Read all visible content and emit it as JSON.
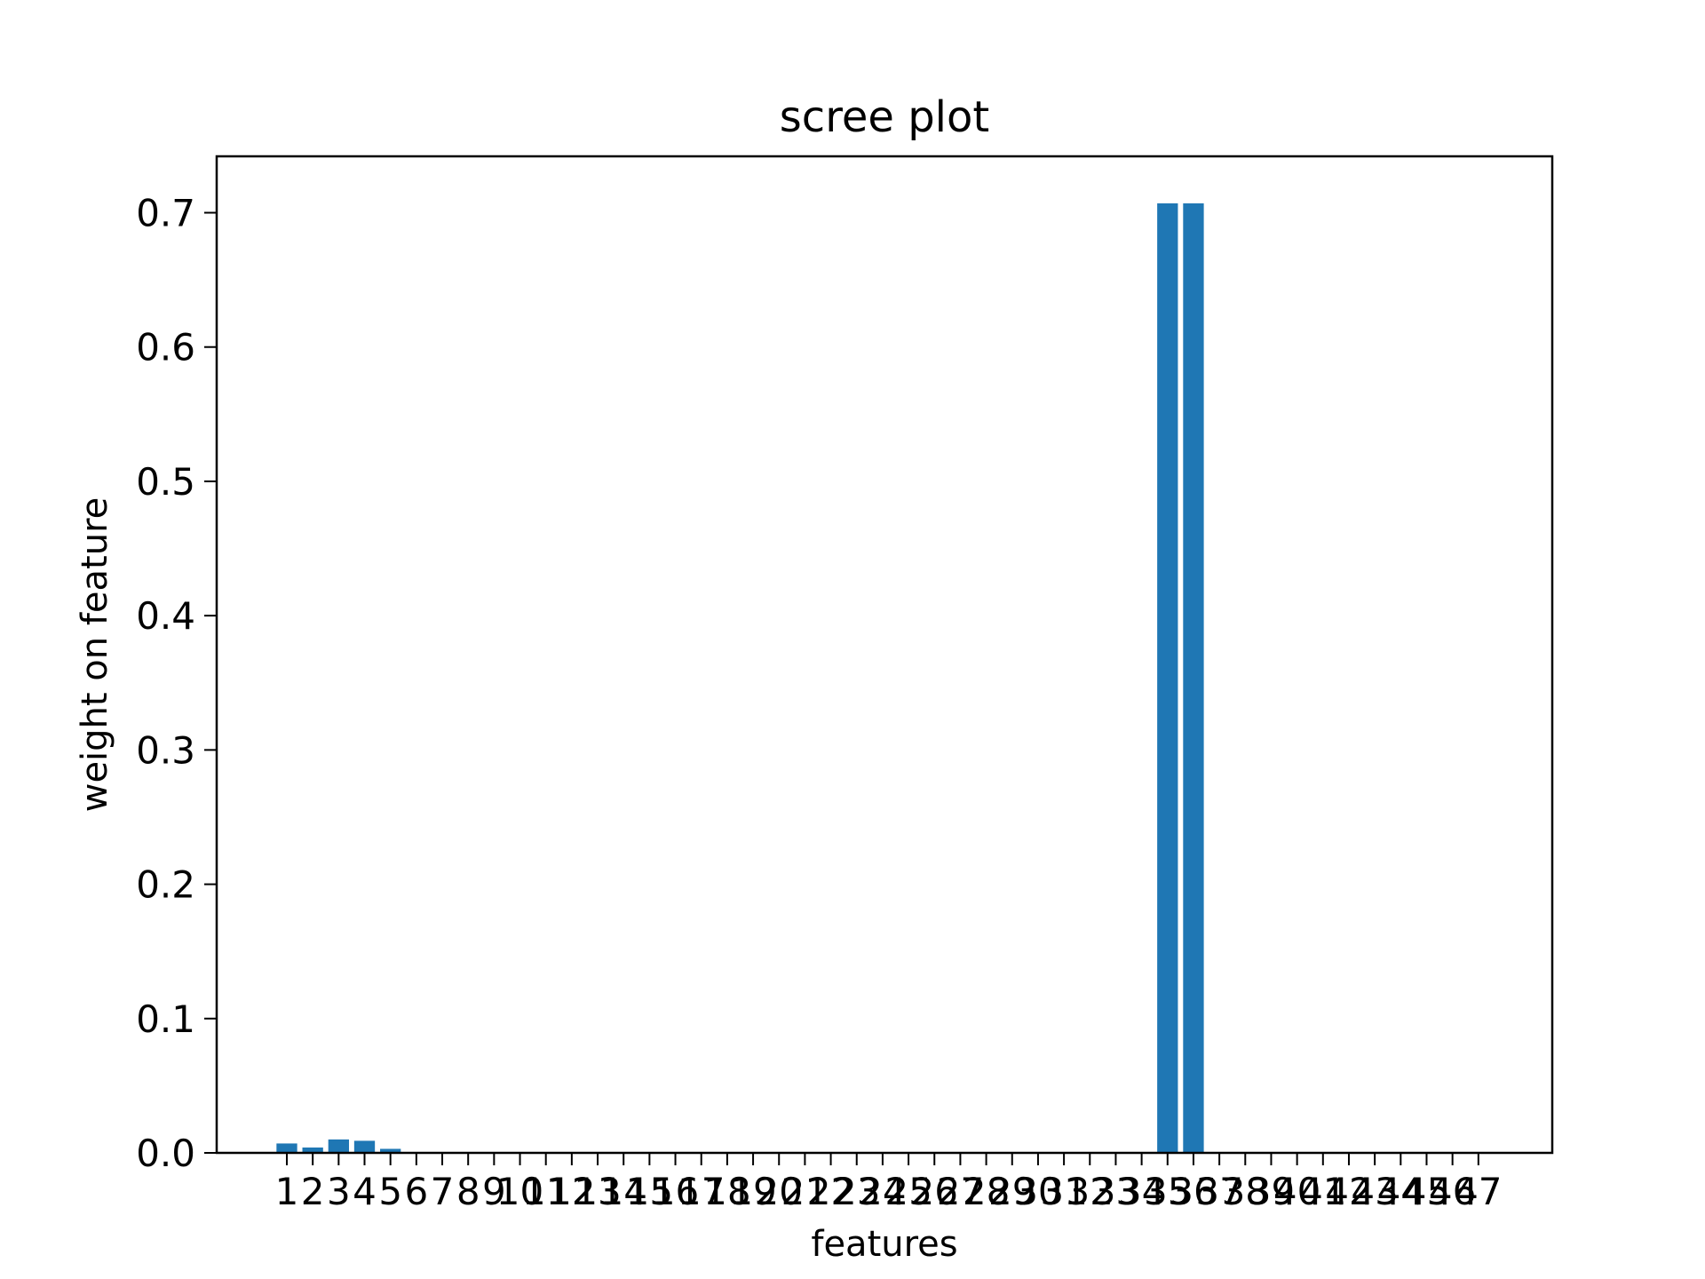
{
  "chart_data": {
    "type": "bar",
    "title": "scree plot",
    "xlabel": "features",
    "ylabel": "weight on feature",
    "categories": [
      "1",
      "2",
      "3",
      "4",
      "5",
      "6",
      "7",
      "8",
      "9",
      "10",
      "11",
      "12",
      "13",
      "14",
      "15",
      "16",
      "17",
      "18",
      "19",
      "20",
      "21",
      "22",
      "23",
      "24",
      "25",
      "26",
      "27",
      "28",
      "29",
      "30",
      "31",
      "32",
      "33",
      "34",
      "35",
      "36",
      "37",
      "38",
      "39",
      "40",
      "41",
      "42",
      "43",
      "44",
      "45",
      "46",
      "47"
    ],
    "values": [
      0.007,
      0.004,
      0.01,
      0.009,
      0.003,
      0,
      0,
      0,
      0,
      0,
      0,
      0,
      0,
      0,
      0,
      0,
      0,
      0,
      0,
      0,
      0,
      0,
      0,
      0,
      0,
      0,
      0,
      0,
      0,
      0,
      0,
      0,
      0,
      0,
      0.707,
      0.707,
      0,
      0,
      0,
      0,
      0,
      0,
      0,
      0,
      0,
      0,
      0
    ],
    "ylim": [
      0,
      0.742
    ],
    "yticks": [
      0.0,
      0.1,
      0.2,
      0.3,
      0.4,
      0.5,
      0.6,
      0.7
    ],
    "ytick_labels": [
      "0.0",
      "0.1",
      "0.2",
      "0.3",
      "0.4",
      "0.5",
      "0.6",
      "0.7"
    ],
    "grid": false,
    "bar_color": "#1f77b4"
  }
}
